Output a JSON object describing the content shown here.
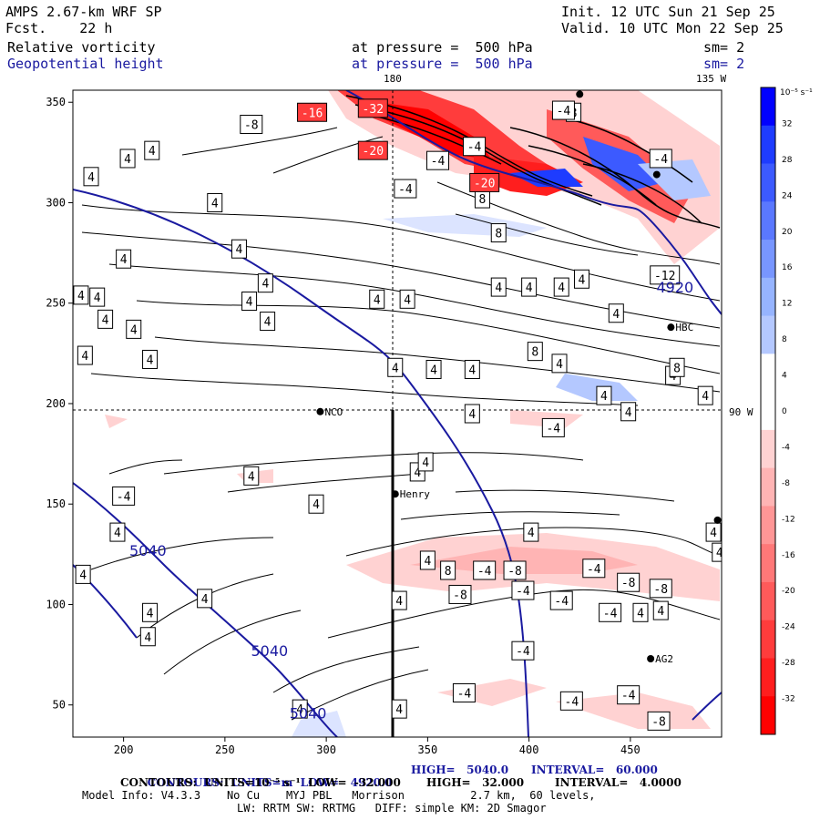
{
  "header": {
    "model": "AMPS 2.67-km WRF SP",
    "init": "Init. 12 UTC Sun 21 Sep 25",
    "fcst": "Fcst.    22 h",
    "valid": "Valid. 10 UTC Mon 22 Sep 25",
    "field1": "Relative vorticity",
    "field1_level": "at pressure =  500 hPa",
    "field1_sm": "sm= 2",
    "field2": "Geopotential height",
    "field2_level": "at pressure =  500 hPa",
    "field2_sm": "sm= 2"
  },
  "map_labels": {
    "lon_180": "180",
    "lon_135w": "135 W",
    "lon_90w": "90 W"
  },
  "stations": [
    {
      "name": "NCO",
      "x": 297,
      "y": 196
    },
    {
      "name": "HBC",
      "x": 470,
      "y": 238
    },
    {
      "name": "Henry",
      "x": 334,
      "y": 155
    },
    {
      "name": "AG2",
      "x": 460,
      "y": 73
    },
    {
      "name": "",
      "x": 463,
      "y": 314
    },
    {
      "name": "",
      "x": 425,
      "y": 354
    },
    {
      "name": "",
      "x": 493,
      "y": 142
    }
  ],
  "axes": {
    "x_ticks": [
      "200",
      "250",
      "300",
      "350",
      "400",
      "450"
    ],
    "y_ticks": [
      "50",
      "100",
      "150",
      "200",
      "250",
      "300",
      "350"
    ]
  },
  "colorbar": {
    "units": "10⁻⁵ s⁻¹",
    "labels": [
      "32",
      "28",
      "24",
      "20",
      "16",
      "12",
      "8",
      "4",
      "0",
      "-4",
      "-8",
      "-12",
      "-16",
      "-20",
      "-24",
      "-28",
      "-32"
    ],
    "colors": [
      "#0000ff",
      "#1e3cff",
      "#3c5aff",
      "#5a78ff",
      "#7896ff",
      "#96b4ff",
      "#b4c8ff",
      "#ffffff",
      "#ffffff",
      "#ffd2d2",
      "#ffb4b4",
      "#ff9696",
      "#ff7878",
      "#ff5a5a",
      "#ff3c3c",
      "#ff1e1e",
      "#ff0000"
    ]
  },
  "height_labels": [
    {
      "text": "5040",
      "x": 212,
      "y": 127
    },
    {
      "text": "5040",
      "x": 272,
      "y": 77
    },
    {
      "text": "5040",
      "x": 291,
      "y": 46
    },
    {
      "text": "4920",
      "x": 472,
      "y": 258
    }
  ],
  "vort_labels": [
    {
      "t": "4",
      "x": 184,
      "y": 313
    },
    {
      "t": "4",
      "x": 202,
      "y": 322
    },
    {
      "t": "4",
      "x": 214,
      "y": 326
    },
    {
      "t": "4",
      "x": 245,
      "y": 300
    },
    {
      "t": "4",
      "x": 257,
      "y": 277
    },
    {
      "t": "4",
      "x": 200,
      "y": 272
    },
    {
      "t": "4",
      "x": 187,
      "y": 253
    },
    {
      "t": "4",
      "x": 179,
      "y": 254
    },
    {
      "t": "4",
      "x": 262,
      "y": 251
    },
    {
      "t": "4",
      "x": 270,
      "y": 260
    },
    {
      "t": "4",
      "x": 271,
      "y": 241
    },
    {
      "t": "4",
      "x": 205,
      "y": 237
    },
    {
      "t": "4",
      "x": 191,
      "y": 242
    },
    {
      "t": "4",
      "x": 213,
      "y": 222
    },
    {
      "t": "4",
      "x": 181,
      "y": 224
    },
    {
      "t": "4",
      "x": 325,
      "y": 252
    },
    {
      "t": "4",
      "x": 340,
      "y": 252
    },
    {
      "t": "4",
      "x": 334,
      "y": 218
    },
    {
      "t": "4",
      "x": 353,
      "y": 217
    },
    {
      "t": "4",
      "x": 372,
      "y": 217
    },
    {
      "t": "4",
      "x": 385,
      "y": 258
    },
    {
      "t": "4",
      "x": 400,
      "y": 258
    },
    {
      "t": "4",
      "x": 416,
      "y": 258
    },
    {
      "t": "4",
      "x": 426,
      "y": 262
    },
    {
      "t": "4",
      "x": 443,
      "y": 245
    },
    {
      "t": "4",
      "x": 415,
      "y": 220
    },
    {
      "t": "4",
      "x": 437,
      "y": 204
    },
    {
      "t": "4",
      "x": 449,
      "y": 196
    },
    {
      "t": "4",
      "x": 471,
      "y": 214
    },
    {
      "t": "4",
      "x": 487,
      "y": 204
    },
    {
      "t": "4",
      "x": 372,
      "y": 195
    },
    {
      "t": "4",
      "x": 345,
      "y": 166
    },
    {
      "t": "4",
      "x": 349,
      "y": 171
    },
    {
      "t": "4",
      "x": 197,
      "y": 136
    },
    {
      "t": "4",
      "x": 180,
      "y": 115
    },
    {
      "t": "4",
      "x": 240,
      "y": 103
    },
    {
      "t": "4",
      "x": 213,
      "y": 96
    },
    {
      "t": "4",
      "x": 212,
      "y": 84
    },
    {
      "t": "4",
      "x": 295,
      "y": 150
    },
    {
      "t": "4",
      "x": 263,
      "y": 164
    },
    {
      "t": "4",
      "x": 336,
      "y": 102
    },
    {
      "t": "4",
      "x": 336,
      "y": 48
    },
    {
      "t": "4",
      "x": 287,
      "y": 48
    },
    {
      "t": "4",
      "x": 350,
      "y": 122
    },
    {
      "t": "4",
      "x": 401,
      "y": 136
    },
    {
      "t": "4",
      "x": 455,
      "y": 96
    },
    {
      "t": "4",
      "x": 465,
      "y": 97
    },
    {
      "t": "4",
      "x": 491,
      "y": 136
    },
    {
      "t": "4",
      "x": 494,
      "y": 126
    },
    {
      "t": "8",
      "x": 403,
      "y": 226
    },
    {
      "t": "8",
      "x": 377,
      "y": 302
    },
    {
      "t": "8",
      "x": 385,
      "y": 285
    },
    {
      "t": "8",
      "x": 360,
      "y": 117
    },
    {
      "t": "8",
      "x": 473,
      "y": 218
    },
    {
      "t": "8",
      "x": 422,
      "y": 345
    },
    {
      "t": "-4",
      "x": 200,
      "y": 154
    },
    {
      "t": "-4",
      "x": 373,
      "y": 328
    },
    {
      "t": "-4",
      "x": 355,
      "y": 321
    },
    {
      "t": "-4",
      "x": 339,
      "y": 307
    },
    {
      "t": "-4",
      "x": 417,
      "y": 346
    },
    {
      "t": "-4",
      "x": 412,
      "y": 188
    },
    {
      "t": "-4",
      "x": 378,
      "y": 117
    },
    {
      "t": "-4",
      "x": 397,
      "y": 107
    },
    {
      "t": "-4",
      "x": 432,
      "y": 118
    },
    {
      "t": "-4",
      "x": 416,
      "y": 102
    },
    {
      "t": "-4",
      "x": 440,
      "y": 96
    },
    {
      "t": "-4",
      "x": 397,
      "y": 77
    },
    {
      "t": "-4",
      "x": 368,
      "y": 56
    },
    {
      "t": "-4",
      "x": 421,
      "y": 52
    },
    {
      "t": "-4",
      "x": 449,
      "y": 55
    },
    {
      "t": "-4",
      "x": 465,
      "y": 322
    },
    {
      "t": "-8",
      "x": 263,
      "y": 339
    },
    {
      "t": "-8",
      "x": 366,
      "y": 105
    },
    {
      "t": "-8",
      "x": 393,
      "y": 117
    },
    {
      "t": "-8",
      "x": 449,
      "y": 111
    },
    {
      "t": "-8",
      "x": 465,
      "y": 108
    },
    {
      "t": "-8",
      "x": 464,
      "y": 42
    },
    {
      "t": "-12",
      "x": 467,
      "y": 264
    },
    {
      "t": "-16",
      "x": 293,
      "y": 345
    },
    {
      "t": "-20",
      "x": 323,
      "y": 326
    },
    {
      "t": "-20",
      "x": 378,
      "y": 310
    },
    {
      "t": "-32",
      "x": 323,
      "y": 347
    }
  ],
  "footer": {
    "line1_a": "CONTOURS:  UNITS=m  LOW=   4920.0",
    "line1_b": "HIGH=   5040.0",
    "line1_c": "INTERVAL=   60.000",
    "line2_a": "CONTOURS:  UNITS=10⁻⁵ s⁻¹  LOW=  -32.000",
    "line2_b": "HIGH=   32.000",
    "line2_c": "INTERVAL=   4.0000",
    "line3": "Model Info: V4.3.3    No Cu    MYJ PBL   Morrison          2.7 km,  60 levels,",
    "line4": "LW: RRTM SW: RRTMG   DIFF: simple KM: 2D Smagor"
  }
}
